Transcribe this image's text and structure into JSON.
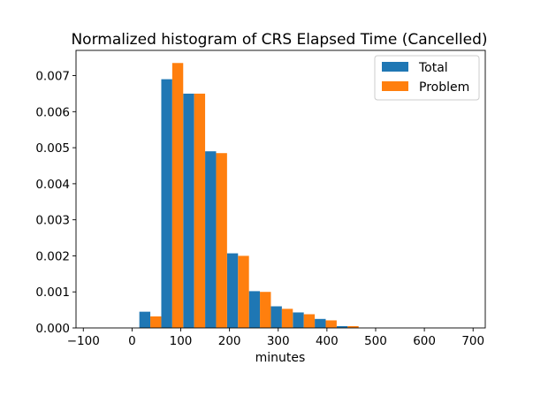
{
  "chart_data": {
    "type": "bar",
    "title": "Normalized histogram of CRS Elapsed Time (Cancelled)",
    "xlabel": "minutes",
    "ylabel": "",
    "xlim": [
      -115,
      725
    ],
    "ylim": [
      0,
      0.0077
    ],
    "xticks": [
      -100,
      0,
      100,
      200,
      300,
      400,
      500,
      600,
      700
    ],
    "xtick_labels": [
      "−100",
      "0",
      "100",
      "200",
      "300",
      "400",
      "500",
      "600",
      "700"
    ],
    "yticks": [
      0,
      0.001,
      0.002,
      0.003,
      0.004,
      0.005,
      0.006,
      0.007
    ],
    "ytick_labels": [
      "0.000",
      "0.001",
      "0.002",
      "0.003",
      "0.004",
      "0.005",
      "0.006",
      "0.007"
    ],
    "bin_edges": [
      15,
      60,
      105,
      150,
      195,
      240,
      285,
      330,
      375,
      420,
      465
    ],
    "legend_position": "top-right",
    "grid": false,
    "series": [
      {
        "name": "Total",
        "color": "#1f77b4",
        "values": [
          0.00045,
          0.0069,
          0.0065,
          0.0049,
          0.00207,
          0.00102,
          0.0006,
          0.00043,
          0.00025,
          5e-05
        ]
      },
      {
        "name": "Problem",
        "color": "#ff7f0e",
        "values": [
          0.00032,
          0.00735,
          0.0065,
          0.00485,
          0.002,
          0.001,
          0.00053,
          0.00038,
          0.00021,
          5e-05
        ]
      }
    ]
  }
}
